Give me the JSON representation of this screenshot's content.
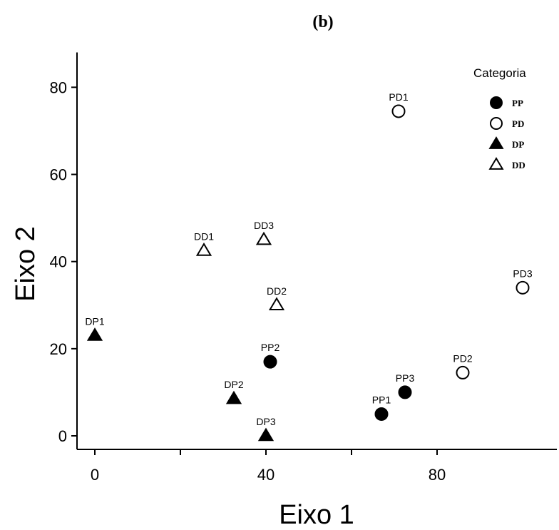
{
  "chart_data": {
    "type": "scatter",
    "panel_label": "(b)",
    "xlabel": "Eixo 1",
    "ylabel": "Eixo 2",
    "xticks": [
      0,
      40,
      80
    ],
    "xticks_unlabeled": [
      20,
      60
    ],
    "yticks": [
      0,
      20,
      40,
      60,
      80
    ],
    "xlim": [
      -3,
      108
    ],
    "ylim": [
      -3,
      88
    ],
    "grid": false,
    "legend": {
      "title": "Categoria",
      "position": "top-right",
      "entries": [
        {
          "label": "PP",
          "marker": "filled-circle"
        },
        {
          "label": "PD",
          "marker": "open-circle"
        },
        {
          "label": "DP",
          "marker": "filled-triangle"
        },
        {
          "label": "DD",
          "marker": "open-triangle"
        }
      ]
    },
    "points": [
      {
        "label": "PP1",
        "category": "PP",
        "x": 67,
        "y": 5
      },
      {
        "label": "PP2",
        "category": "PP",
        "x": 41,
        "y": 17
      },
      {
        "label": "PP3",
        "category": "PP",
        "x": 72.5,
        "y": 10
      },
      {
        "label": "PD1",
        "category": "PD",
        "x": 71,
        "y": 74.5
      },
      {
        "label": "PD2",
        "category": "PD",
        "x": 86,
        "y": 14.5
      },
      {
        "label": "PD3",
        "category": "PD",
        "x": 100,
        "y": 34
      },
      {
        "label": "DP1",
        "category": "DP",
        "x": 0,
        "y": 23
      },
      {
        "label": "DP2",
        "category": "DP",
        "x": 32.5,
        "y": 8.5
      },
      {
        "label": "DP3",
        "category": "DP",
        "x": 40,
        "y": 0
      },
      {
        "label": "DD1",
        "category": "DD",
        "x": 25.5,
        "y": 42.5
      },
      {
        "label": "DD2",
        "category": "DD",
        "x": 42.5,
        "y": 30
      },
      {
        "label": "DD3",
        "category": "DD",
        "x": 39.5,
        "y": 45
      }
    ]
  }
}
